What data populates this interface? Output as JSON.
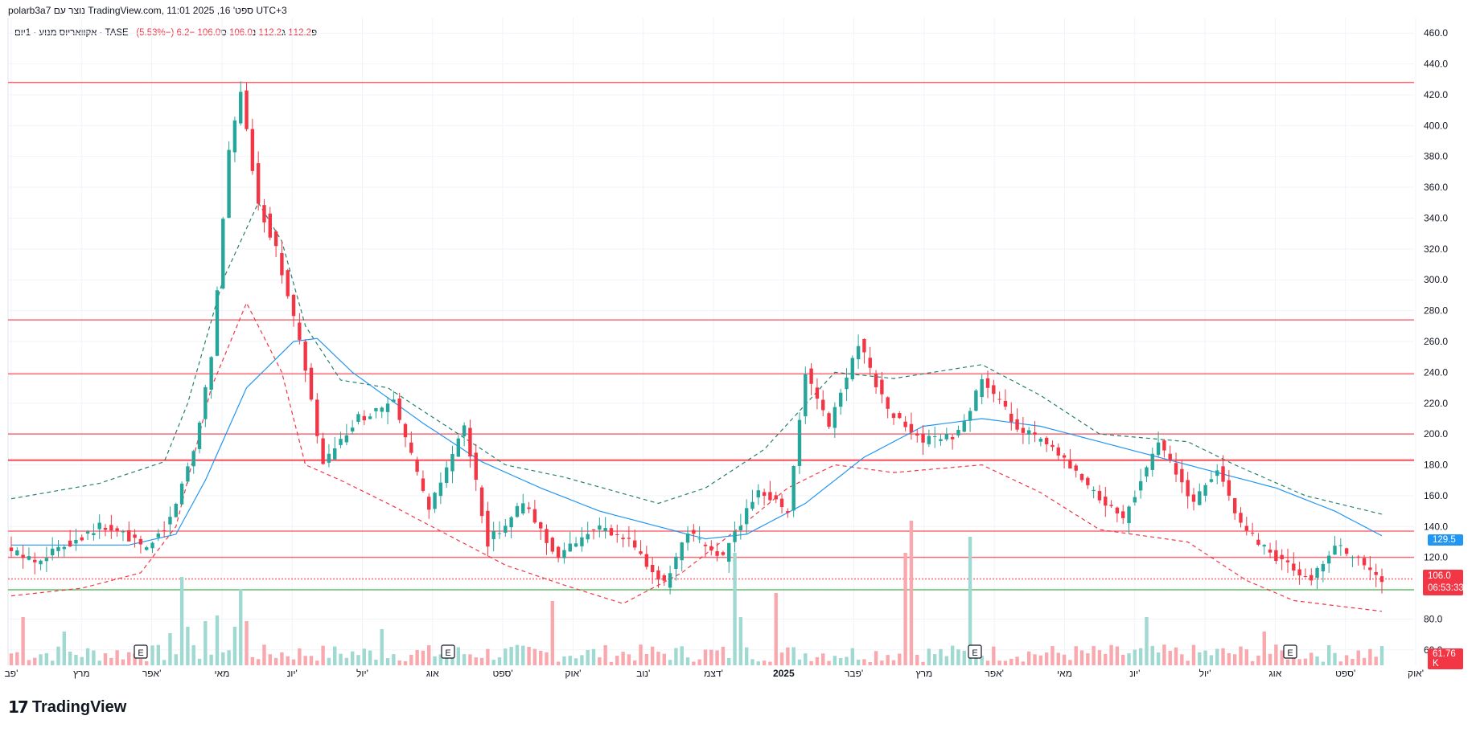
{
  "header": {
    "creator_line": "polarb3a7 נוצר עם TradingView.com, 11:01 2025 ,16 'ספט UTC+3",
    "symbol_line": "אקוואריוס מנוע · 1יום · TASE",
    "ohlc_open_label": "פ",
    "ohlc_open": "112.2",
    "ohlc_high_label": "ג",
    "ohlc_high": "112.2",
    "ohlc_low_label": "נ",
    "ohlc_low": "106.0",
    "ohlc_close_label": "ס",
    "ohlc_close": "106.0",
    "change": "−6.2 (−5.53%)"
  },
  "tags": {
    "ma_value": "129.5",
    "last_price": "106.0",
    "countdown": "06:53:33",
    "volume": "61.76 K"
  },
  "footer": {
    "brand": "TradingView"
  },
  "colors": {
    "up": "#26a69a",
    "down": "#f23645",
    "ma": "#2196f3",
    "band_upper": "#26806f",
    "band_lower": "#f23645",
    "hline": "#f7525f",
    "support": "#4caf50"
  },
  "chart_data": {
    "type": "candlestick",
    "ylim": [
      50,
      470
    ],
    "y_ticks": [
      "60.0",
      "80.0",
      "100.0",
      "120.0",
      "140.0",
      "160.0",
      "180.0",
      "200.0",
      "220.0",
      "240.0",
      "260.0",
      "280.0",
      "300.0",
      "320.0",
      "340.0",
      "360.0",
      "380.0",
      "400.0",
      "420.0",
      "440.0",
      "460.0"
    ],
    "x_ticks": [
      "פב'",
      "מרץ",
      "אפר'",
      "מאי",
      "יונ'",
      "יול'",
      "אוג",
      "ספט'",
      "אוק'",
      "נוב'",
      "דצמ'",
      "2025",
      "פבר'",
      "מרץ",
      "אפר'",
      "מאי",
      "יונ'",
      "יול'",
      "אוג",
      "ספט'",
      "אוק'"
    ],
    "earnings_markers": [
      "E",
      "E",
      "E",
      "E"
    ],
    "horizontal_levels": [
      428,
      274,
      239,
      200,
      183,
      137,
      120,
      106,
      99
    ],
    "ma_anchors": [
      [
        0,
        128
      ],
      [
        20,
        128
      ],
      [
        28,
        135
      ],
      [
        33,
        170
      ],
      [
        40,
        230
      ],
      [
        48,
        260
      ],
      [
        52,
        262
      ],
      [
        58,
        240
      ],
      [
        70,
        207
      ],
      [
        80,
        182
      ],
      [
        90,
        165
      ],
      [
        100,
        150
      ],
      [
        110,
        140
      ],
      [
        118,
        132
      ],
      [
        125,
        135
      ],
      [
        135,
        155
      ],
      [
        145,
        185
      ],
      [
        155,
        205
      ],
      [
        165,
        210
      ],
      [
        175,
        205
      ],
      [
        185,
        195
      ],
      [
        195,
        185
      ],
      [
        205,
        175
      ],
      [
        215,
        165
      ],
      [
        225,
        150
      ],
      [
        233,
        134
      ]
    ],
    "upper_band_anchors": [
      [
        0,
        158
      ],
      [
        15,
        168
      ],
      [
        26,
        182
      ],
      [
        30,
        220
      ],
      [
        36,
        300
      ],
      [
        42,
        350
      ],
      [
        46,
        325
      ],
      [
        50,
        270
      ],
      [
        56,
        235
      ],
      [
        64,
        230
      ],
      [
        74,
        205
      ],
      [
        84,
        180
      ],
      [
        94,
        172
      ],
      [
        110,
        155
      ],
      [
        118,
        165
      ],
      [
        128,
        190
      ],
      [
        140,
        240
      ],
      [
        150,
        236
      ],
      [
        165,
        245
      ],
      [
        175,
        225
      ],
      [
        185,
        200
      ],
      [
        200,
        195
      ],
      [
        208,
        180
      ],
      [
        220,
        160
      ],
      [
        233,
        148
      ]
    ],
    "lower_band_anchors": [
      [
        0,
        95
      ],
      [
        12,
        100
      ],
      [
        22,
        110
      ],
      [
        28,
        140
      ],
      [
        34,
        230
      ],
      [
        40,
        285
      ],
      [
        46,
        240
      ],
      [
        50,
        180
      ],
      [
        56,
        170
      ],
      [
        64,
        155
      ],
      [
        74,
        135
      ],
      [
        84,
        115
      ],
      [
        94,
        102
      ],
      [
        104,
        90
      ],
      [
        114,
        110
      ],
      [
        124,
        140
      ],
      [
        132,
        165
      ],
      [
        140,
        180
      ],
      [
        150,
        175
      ],
      [
        165,
        180
      ],
      [
        175,
        162
      ],
      [
        185,
        138
      ],
      [
        200,
        130
      ],
      [
        210,
        105
      ],
      [
        218,
        92
      ],
      [
        233,
        85
      ]
    ],
    "price_anchors": [
      [
        0,
        125
      ],
      [
        5,
        118
      ],
      [
        10,
        128
      ],
      [
        16,
        140
      ],
      [
        20,
        135
      ],
      [
        24,
        125
      ],
      [
        28,
        145
      ],
      [
        32,
        190
      ],
      [
        35,
        250
      ],
      [
        38,
        385
      ],
      [
        40,
        420
      ],
      [
        43,
        350
      ],
      [
        46,
        320
      ],
      [
        50,
        260
      ],
      [
        54,
        180
      ],
      [
        60,
        210
      ],
      [
        66,
        220
      ],
      [
        72,
        150
      ],
      [
        78,
        205
      ],
      [
        82,
        130
      ],
      [
        88,
        155
      ],
      [
        94,
        120
      ],
      [
        100,
        140
      ],
      [
        106,
        130
      ],
      [
        112,
        102
      ],
      [
        116,
        135
      ],
      [
        122,
        120
      ],
      [
        128,
        165
      ],
      [
        133,
        150
      ],
      [
        136,
        240
      ],
      [
        140,
        205
      ],
      [
        145,
        260
      ],
      [
        150,
        215
      ],
      [
        156,
        195
      ],
      [
        162,
        200
      ],
      [
        166,
        235
      ],
      [
        172,
        205
      ],
      [
        178,
        190
      ],
      [
        184,
        165
      ],
      [
        190,
        145
      ],
      [
        196,
        195
      ],
      [
        202,
        155
      ],
      [
        206,
        178
      ],
      [
        210,
        140
      ],
      [
        216,
        120
      ],
      [
        222,
        105
      ],
      [
        226,
        128
      ],
      [
        231,
        115
      ],
      [
        233,
        106
      ]
    ],
    "candle_count": 234,
    "volume_note": "volume histogram in lower pane"
  }
}
